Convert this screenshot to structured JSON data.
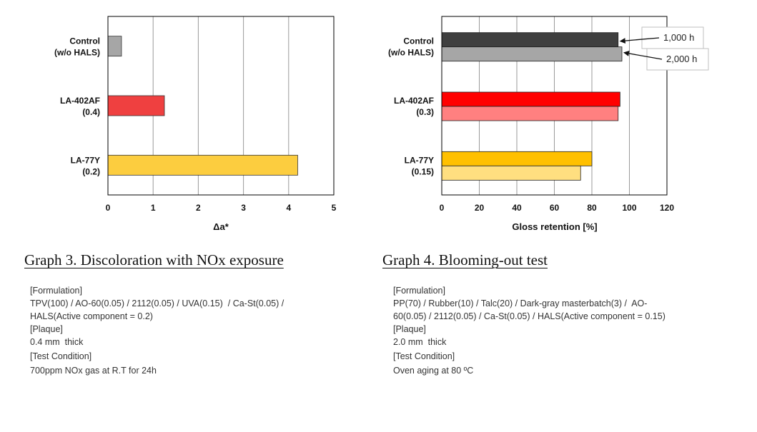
{
  "chart_data": [
    {
      "type": "bar",
      "orientation": "horizontal",
      "title": "Graph 3. Discoloration with NOx exposure",
      "xlabel": "Δa*",
      "ylabel": "",
      "xlim": [
        0,
        5
      ],
      "xticks": [
        "0",
        "1",
        "2",
        "3",
        "4",
        "5"
      ],
      "categories": [
        {
          "line1": "Control",
          "line2": "(w/o HALS)"
        },
        {
          "line1": "LA-402AF",
          "line2": "(0.4)"
        },
        {
          "line1": "LA-77Y",
          "line2": "(0.2)"
        }
      ],
      "values": [
        0.3,
        1.25,
        4.2
      ],
      "colors": [
        "#a6a6a6",
        "#ef4040",
        "#fccd3f"
      ],
      "grid": true
    },
    {
      "type": "bar",
      "orientation": "horizontal",
      "title": "Graph 4. Blooming-out test",
      "xlabel": "Gloss retention [%]",
      "ylabel": "",
      "xlim": [
        0,
        120
      ],
      "xticks": [
        "0",
        "20",
        "40",
        "60",
        "80",
        "100",
        "120"
      ],
      "categories": [
        {
          "line1": "Control",
          "line2": "(w/o HALS)"
        },
        {
          "line1": "LA-402AF",
          "line2": "(0.3)"
        },
        {
          "line1": "LA-77Y",
          "line2": "(0.15)"
        }
      ],
      "series": [
        {
          "name": "1,000 h",
          "values": [
            94,
            95,
            80
          ],
          "colors": [
            "#3f3f3f",
            "#ff0000",
            "#ffc000"
          ]
        },
        {
          "name": "2,000 h",
          "values": [
            96,
            94,
            74
          ],
          "colors": [
            "#a6a6a6",
            "#ff8080",
            "#ffdf80"
          ]
        }
      ],
      "annotations": [
        "1,000 h",
        "2,000 h"
      ],
      "grid": true
    }
  ],
  "notes_left": {
    "formulation_label": "[Formulation]",
    "formulation_line1": "TPV(100) / AO-60(0.05) / 2112(0.05) / UVA(0.15)  / Ca-St(0.05) /",
    "formulation_line2": "HALS(Active component = 0.2)",
    "plaque_label": "[Plaque]",
    "plaque_value": "0.4 mm  thick",
    "condition_label": "[Test Condition]",
    "condition_value": "700ppm NOx gas at R.T for 24h"
  },
  "notes_right": {
    "formulation_label": "[Formulation]",
    "formulation_line1": "PP(70) / Rubber(10) / Talc(20) / Dark-gray masterbatch(3) /  AO-",
    "formulation_line2": "60(0.05) / 2112(0.05) / Ca-St(0.05) / HALS(Active component = 0.15)",
    "plaque_label": "[Plaque]",
    "plaque_value": "2.0 mm  thick",
    "condition_label": "[Test Condition]",
    "condition_value": "Oven aging at 80 ºC"
  }
}
